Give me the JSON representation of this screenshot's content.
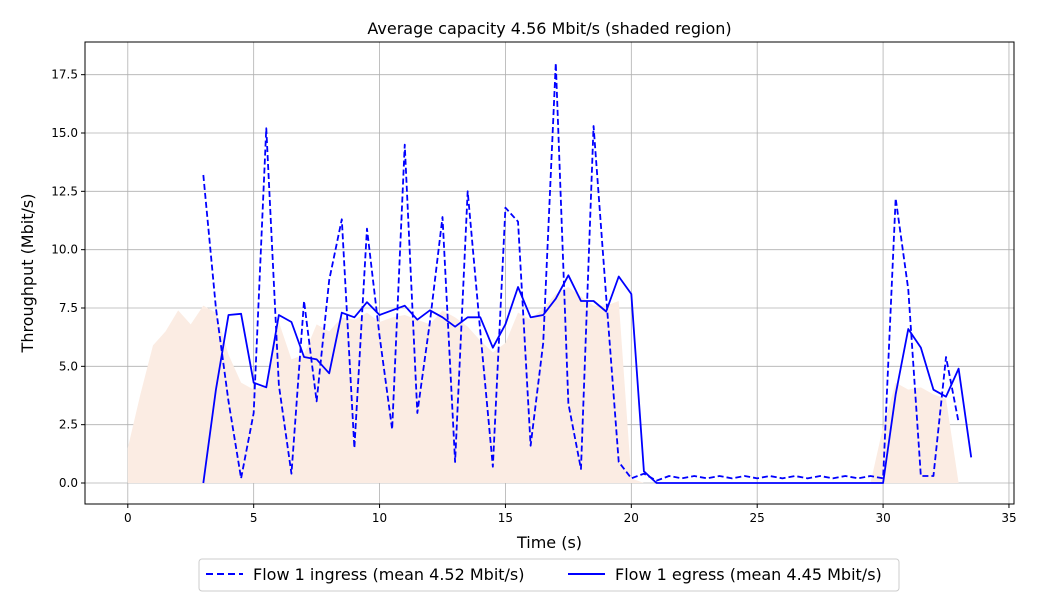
{
  "chart_data": {
    "type": "line",
    "title": "Average capacity 4.56 Mbit/s (shaded region)",
    "xlabel": "Time (s)",
    "ylabel": "Throughput (Mbit/s)",
    "xlim": [
      -1.7,
      35.2
    ],
    "ylim": [
      -0.9,
      18.9
    ],
    "xticks": [
      0,
      5,
      10,
      15,
      20,
      25,
      30,
      35
    ],
    "yticks": [
      0.0,
      2.5,
      5.0,
      7.5,
      10.0,
      12.5,
      15.0,
      17.5
    ],
    "xtick_labels": [
      "0",
      "5",
      "10",
      "15",
      "20",
      "25",
      "30",
      "35"
    ],
    "ytick_labels": [
      "0.0",
      "2.5",
      "5.0",
      "7.5",
      "10.0",
      "12.5",
      "15.0",
      "17.5"
    ],
    "grid": true,
    "legend_position": "bottom-center",
    "colors": {
      "flows": "#0000ff",
      "capacity_fill": "#fbece3",
      "grid": "#b0b0b0"
    },
    "capacity_region": {
      "x": [
        0.0,
        0.5,
        1.0,
        1.5,
        2.0,
        2.5,
        3.0,
        3.5,
        4.0,
        4.5,
        5.0,
        5.5,
        6.0,
        6.5,
        7.0,
        7.5,
        8.0,
        8.5,
        9.0,
        9.5,
        10.0,
        10.5,
        11.0,
        11.5,
        12.0,
        12.5,
        13.0,
        13.5,
        14.0,
        14.5,
        15.0,
        15.5,
        16.0,
        16.5,
        17.0,
        17.5,
        18.0,
        18.5,
        19.0,
        19.5,
        20.0,
        20.5,
        29.5,
        30.0,
        30.5,
        31.0,
        31.5,
        32.0,
        32.5,
        33.0
      ],
      "y": [
        1.5,
        3.8,
        5.9,
        6.5,
        7.4,
        6.8,
        7.6,
        7.3,
        5.5,
        4.3,
        4.0,
        4.2,
        6.9,
        5.3,
        5.5,
        6.8,
        6.5,
        7.1,
        7.0,
        7.3,
        6.9,
        7.1,
        7.2,
        7.0,
        6.8,
        7.4,
        7.1,
        6.7,
        6.1,
        5.6,
        6.0,
        7.3,
        7.0,
        7.5,
        8.1,
        8.4,
        8.0,
        7.6,
        7.6,
        7.8,
        0.2,
        0.0,
        0.0,
        2.4,
        4.3,
        4.0,
        4.1,
        3.8,
        3.6,
        0.0
      ]
    },
    "series": [
      {
        "name": "Flow 1 ingress (mean 4.52 Mbit/s)",
        "style": "dashed",
        "x": [
          3.0,
          3.5,
          4.0,
          4.5,
          5.0,
          5.5,
          6.0,
          6.5,
          7.0,
          7.5,
          8.0,
          8.5,
          9.0,
          9.5,
          10.0,
          10.5,
          11.0,
          11.5,
          12.0,
          12.5,
          13.0,
          13.5,
          14.0,
          14.5,
          15.0,
          15.5,
          16.0,
          16.5,
          17.0,
          17.5,
          18.0,
          18.5,
          19.0,
          19.5,
          20.0,
          20.5,
          21.0,
          21.5,
          22.0,
          22.5,
          23.0,
          23.5,
          24.0,
          24.5,
          25.0,
          25.5,
          26.0,
          26.5,
          27.0,
          27.5,
          28.0,
          28.5,
          29.0,
          29.5,
          30.0,
          30.5,
          31.0,
          31.5,
          32.0,
          32.5,
          33.0
        ],
        "y": [
          13.2,
          7.5,
          3.5,
          0.2,
          3.0,
          15.2,
          4.2,
          0.4,
          7.8,
          3.5,
          8.7,
          11.3,
          1.5,
          10.9,
          6.3,
          2.3,
          14.5,
          3.0,
          6.9,
          11.4,
          0.9,
          12.5,
          6.5,
          0.7,
          11.8,
          11.2,
          1.6,
          6.0,
          18.0,
          3.4,
          0.6,
          15.3,
          8.0,
          0.9,
          0.2,
          0.4,
          0.1,
          0.3,
          0.2,
          0.3,
          0.2,
          0.3,
          0.2,
          0.3,
          0.2,
          0.3,
          0.2,
          0.3,
          0.2,
          0.3,
          0.2,
          0.3,
          0.2,
          0.3,
          0.2,
          12.2,
          8.3,
          0.3,
          0.3,
          5.4,
          2.6
        ]
      },
      {
        "name": "Flow 1 egress (mean 4.45 Mbit/s)",
        "style": "solid",
        "x": [
          3.0,
          3.5,
          4.0,
          4.5,
          5.0,
          5.5,
          6.0,
          6.5,
          7.0,
          7.5,
          8.0,
          8.5,
          9.0,
          9.5,
          10.0,
          10.5,
          11.0,
          11.5,
          12.0,
          12.5,
          13.0,
          13.5,
          14.0,
          14.5,
          15.0,
          15.5,
          16.0,
          16.5,
          17.0,
          17.5,
          18.0,
          18.5,
          19.0,
          19.5,
          20.0,
          20.5,
          21.0,
          22.0,
          23.0,
          24.0,
          25.0,
          26.0,
          27.0,
          28.0,
          29.0,
          30.0,
          30.5,
          31.0,
          31.5,
          32.0,
          32.5,
          33.0,
          33.5
        ],
        "y": [
          0.0,
          4.0,
          7.2,
          7.25,
          4.3,
          4.1,
          7.2,
          6.9,
          5.4,
          5.3,
          4.7,
          7.3,
          7.1,
          7.75,
          7.2,
          7.4,
          7.6,
          7.0,
          7.4,
          7.1,
          6.7,
          7.1,
          7.1,
          5.8,
          6.8,
          8.4,
          7.1,
          7.2,
          7.9,
          8.9,
          7.8,
          7.8,
          7.35,
          8.85,
          8.1,
          0.5,
          0.0,
          0.0,
          0.0,
          0.0,
          0.0,
          0.0,
          0.0,
          0.0,
          0.0,
          0.0,
          3.8,
          6.6,
          5.8,
          4.0,
          3.7,
          4.9,
          1.1
        ]
      }
    ]
  }
}
